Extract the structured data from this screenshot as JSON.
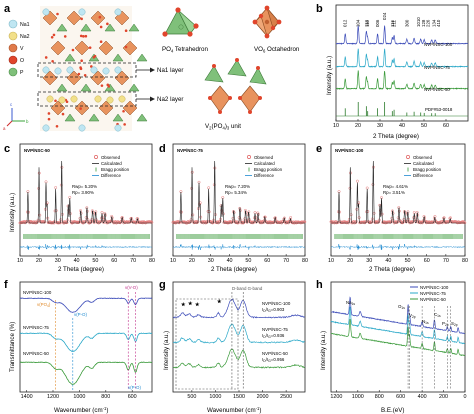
{
  "figure": {
    "panels": {
      "a": {
        "label": "a",
        "legend": [
          "Na1",
          "Na2",
          "V",
          "O",
          "P"
        ],
        "legend_colors": [
          "#bfe6f2",
          "#f2e08a",
          "#e07a4a",
          "#e0452c",
          "#7fc07a"
        ],
        "structure_labels": {
          "po4": "PO",
          "po4_sub": "4",
          "po4_rest": " Tetrahedron",
          "vo6": "VO",
          "vo6_sub": "6",
          "vo6_rest": " Octahedron",
          "na1_layer": "Na1 layer",
          "na2_layer": "Na2 layer",
          "unit": "V",
          "unit_sub1": "2",
          "unit_mid": "(PO",
          "unit_sub2": "4",
          "unit_mid2": ")",
          "unit_sub3": "3",
          "unit_rest": " unit"
        },
        "axes": {
          "a": "a",
          "b": "b",
          "c": "c"
        }
      },
      "b": {
        "label": "b",
        "ylabel": "Intensity (a.u.)",
        "xlabel": "2 Theta (degree)",
        "xticks": [
          "10",
          "20",
          "30",
          "40",
          "50",
          "60"
        ],
        "peak_labels": [
          "012",
          "104",
          "113",
          "110",
          "006",
          "024",
          "116",
          "211",
          "300",
          "1010",
          "128",
          "226",
          "134",
          "410"
        ],
        "series_labels": [
          "NVP/NSC-100",
          "NVP/NSC-75",
          "NVP/NSC-50",
          "PDF#53-0018"
        ]
      },
      "c": {
        "label": "c",
        "sample": "NVP/NSC-50",
        "rwp": "Rwp= 5.20%",
        "rp": "Rp= 3.90%",
        "legend": [
          "Observed",
          "Calculated",
          "Bragg position",
          "Difference"
        ],
        "ylabel": "Intensity (a.u.)",
        "xlabel": "2 Theta (degree)",
        "xticks": [
          "10",
          "20",
          "30",
          "40",
          "50",
          "60",
          "70",
          "80"
        ]
      },
      "d": {
        "label": "d",
        "sample": "NVP/NSC-75",
        "rwp": "Rwp= 7.20%",
        "rp": "Rp= 5.34%",
        "legend": [
          "Observed",
          "Calculated",
          "Bragg position",
          "Difference"
        ],
        "xlabel": "2 Theta (degree)",
        "xticks": [
          "10",
          "20",
          "30",
          "40",
          "50",
          "60",
          "70",
          "80"
        ]
      },
      "e": {
        "label": "e",
        "sample": "NVP/NSC-100",
        "rwp": "Rwp= 4.61%",
        "rp": "Rp= 3.51%",
        "legend": [
          "Observed",
          "Calculated",
          "Bragg position",
          "Difference"
        ],
        "xlabel": "2 Theta (degree)",
        "xticks": [
          "10",
          "20",
          "30",
          "40",
          "50",
          "60",
          "70",
          "80"
        ]
      },
      "f": {
        "label": "f",
        "ylabel": "Transmittance (%)",
        "xlabel": "Wavenumber (cm",
        "xlabel_sup": "-1",
        "xlabel_end": ")",
        "xticks": [
          "1400",
          "1200",
          "1000",
          "800",
          "600"
        ],
        "series_labels": [
          "NVP/NSC-100",
          "NVP/NSC-75",
          "NVP/NSC-50"
        ],
        "annotations": {
          "po4": "v",
          "po4_paren": "(PO",
          "po4_sub": "4",
          "po4_end": ")",
          "vpo": "v(P-O)",
          "vpo2": "v(P-O)",
          "vvo": "v(V-O)"
        }
      },
      "g": {
        "label": "g",
        "ylabel": "Intensity (a.u.)",
        "xlabel": "Wavenumber (cm",
        "xlabel_sup": "-1",
        "xlabel_end": ")",
        "xticks": [
          "500",
          "1000",
          "1500",
          "2000",
          "2500"
        ],
        "band_label": "D-band G-band",
        "series_labels": [
          "NVP/NSC-100",
          "NVP/NSC-75",
          "NVP/NSC-50"
        ],
        "ratios": [
          "0.903",
          "0.936",
          "0.956"
        ],
        "ratio_prefix": "I",
        "ratio_sub1": "D",
        "ratio_slash": "/I",
        "ratio_sub2": "G",
        "ratio_eq": "="
      },
      "h": {
        "label": "h",
        "ylabel": "Intensity (a.u.)",
        "xlabel": "B.E.(eV)",
        "xticks": [
          "1200",
          "1000",
          "800",
          "600",
          "400",
          "200",
          "0"
        ],
        "legend": [
          "NVP/NSC-100",
          "NVP/NSC-75",
          "NVP/NSC-50"
        ],
        "peak_labels": {
          "na": "Na",
          "na_sub": "1s",
          "o": "O",
          "o_sub": "1s",
          "v": "V",
          "v_sub": "2p",
          "n": "N",
          "n_sub": "1s",
          "c": "C",
          "c_sub": "1s",
          "p": "P",
          "p_sub": "2p",
          "s": "S",
          "s_sub": "2p"
        }
      }
    }
  }
}
